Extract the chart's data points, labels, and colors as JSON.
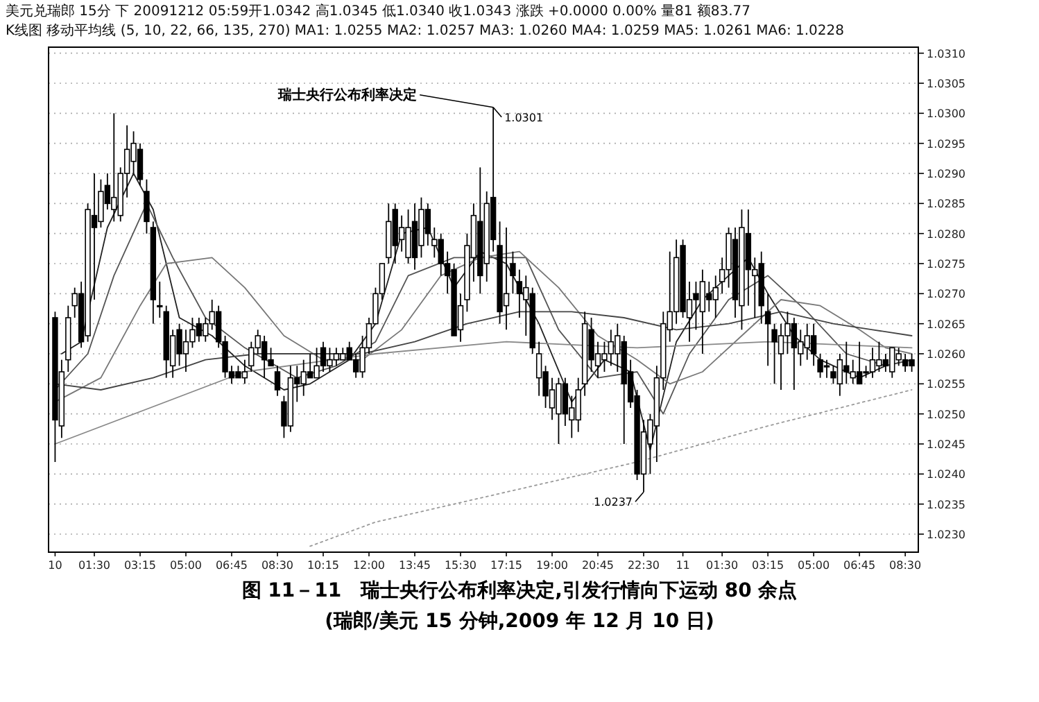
{
  "chart_data": {
    "type": "candlestick",
    "title": "图 11－11　瑞士央行公布利率决定,引发行情向下运动 80 余点",
    "subtitle": "(瑞郎/美元 15 分钟,2009 年 12 月 10 日)",
    "annotations": [
      "美元兑瑞郎 15分 下 20091212 05:59开1.0342 高1.0345 低1.0340 收1.0343 涨跌 +0.0000 0.00% 量81 额83.77",
      "K线图 移动平均线 (5, 10, 22, 66, 135, 270) MA1: 1.0255 MA2: 1.0257 MA3: 1.0260 MA4: 1.0259 MA5: 1.0261 MA6: 1.0228",
      {
        "text": "瑞士央行公布利率决定",
        "x": "2009-12-10T16:45",
        "y": 1.0301
      },
      {
        "text": "1.0301",
        "x": "2009-12-10T16:45",
        "y": 1.0301
      },
      {
        "text": "1.0237",
        "x": "2009-12-10T22:30",
        "y": 1.0237
      }
    ],
    "x": [
      "2009-12-10T00:00",
      "2009-12-10T00:15",
      "2009-12-10T00:30",
      "2009-12-10T00:45",
      "2009-12-10T01:00",
      "2009-12-10T01:15",
      "2009-12-10T01:30",
      "2009-12-10T01:45",
      "2009-12-10T02:00",
      "2009-12-10T02:15",
      "2009-12-10T02:30",
      "2009-12-10T02:45",
      "2009-12-10T03:00",
      "2009-12-10T03:15",
      "2009-12-10T03:30",
      "2009-12-10T03:45",
      "2009-12-10T04:00",
      "2009-12-10T04:15",
      "2009-12-10T04:30",
      "2009-12-10T04:45",
      "2009-12-10T05:00",
      "2009-12-10T05:15",
      "2009-12-10T05:30",
      "2009-12-10T05:45",
      "2009-12-10T06:00",
      "2009-12-10T06:15",
      "2009-12-10T06:30",
      "2009-12-10T06:45",
      "2009-12-10T07:00",
      "2009-12-10T07:15",
      "2009-12-10T07:30",
      "2009-12-10T07:45",
      "2009-12-10T08:00",
      "2009-12-10T08:15",
      "2009-12-10T08:30",
      "2009-12-10T08:45",
      "2009-12-10T09:00",
      "2009-12-10T09:15",
      "2009-12-10T09:30",
      "2009-12-10T09:45",
      "2009-12-10T10:00",
      "2009-12-10T10:15",
      "2009-12-10T10:30",
      "2009-12-10T10:45",
      "2009-12-10T11:00",
      "2009-12-10T11:15",
      "2009-12-10T11:30",
      "2009-12-10T11:45",
      "2009-12-10T12:00",
      "2009-12-10T12:15",
      "2009-12-10T12:30",
      "2009-12-10T12:45",
      "2009-12-10T13:00",
      "2009-12-10T13:15",
      "2009-12-10T13:30",
      "2009-12-10T13:45",
      "2009-12-10T14:00",
      "2009-12-10T14:15",
      "2009-12-10T14:30",
      "2009-12-10T14:45",
      "2009-12-10T15:00",
      "2009-12-10T15:15",
      "2009-12-10T15:30",
      "2009-12-10T15:45",
      "2009-12-10T16:00",
      "2009-12-10T16:15",
      "2009-12-10T16:30",
      "2009-12-10T16:45",
      "2009-12-10T17:00",
      "2009-12-10T17:15",
      "2009-12-10T17:30",
      "2009-12-10T17:45",
      "2009-12-10T18:00",
      "2009-12-10T18:15",
      "2009-12-10T18:30",
      "2009-12-10T18:45",
      "2009-12-10T19:00",
      "2009-12-10T19:15",
      "2009-12-10T19:30",
      "2009-12-10T19:45",
      "2009-12-10T20:00",
      "2009-12-10T20:15",
      "2009-12-10T20:30",
      "2009-12-10T20:45",
      "2009-12-10T21:00",
      "2009-12-10T21:15",
      "2009-12-10T21:30",
      "2009-12-10T21:45",
      "2009-12-10T22:00",
      "2009-12-10T22:15",
      "2009-12-10T22:30",
      "2009-12-10T22:45",
      "2009-12-10T23:00",
      "2009-12-10T23:15",
      "2009-12-10T23:30",
      "2009-12-10T23:45",
      "2009-12-11T00:00",
      "2009-12-11T00:15",
      "2009-12-11T00:30",
      "2009-12-11T00:45",
      "2009-12-11T01:00",
      "2009-12-11T01:15",
      "2009-12-11T01:30",
      "2009-12-11T01:45",
      "2009-12-11T02:00",
      "2009-12-11T02:15",
      "2009-12-11T02:30",
      "2009-12-11T02:45",
      "2009-12-11T03:00",
      "2009-12-11T03:15",
      "2009-12-11T03:30",
      "2009-12-11T03:45",
      "2009-12-11T04:00",
      "2009-12-11T04:15",
      "2009-12-11T04:30",
      "2009-12-11T04:45",
      "2009-12-11T05:00",
      "2009-12-11T05:15",
      "2009-12-11T05:30",
      "2009-12-11T05:45",
      "2009-12-11T06:00",
      "2009-12-11T06:15",
      "2009-12-11T06:30",
      "2009-12-11T06:45",
      "2009-12-11T07:00",
      "2009-12-11T07:15",
      "2009-12-11T07:30",
      "2009-12-11T07:45",
      "2009-12-11T08:00",
      "2009-12-11T08:15",
      "2009-12-11T08:30",
      "2009-12-11T08:45"
    ],
    "ohlc": [
      [
        1.0266,
        1.0267,
        1.0242,
        1.0249
      ],
      [
        1.0248,
        1.0259,
        1.0246,
        1.0257
      ],
      [
        1.0259,
        1.0268,
        1.0257,
        1.0266
      ],
      [
        1.0268,
        1.0271,
        1.0266,
        1.027
      ],
      [
        1.027,
        1.0272,
        1.0261,
        1.0262
      ],
      [
        1.0263,
        1.0285,
        1.0262,
        1.0284
      ],
      [
        1.0283,
        1.029,
        1.0269,
        1.0281
      ],
      [
        1.0282,
        1.0289,
        1.0281,
        1.0287
      ],
      [
        1.0288,
        1.029,
        1.0284,
        1.0285
      ],
      [
        1.0284,
        1.03,
        1.0282,
        1.0286
      ],
      [
        1.0283,
        1.0291,
        1.0282,
        1.029
      ],
      [
        1.029,
        1.0298,
        1.0286,
        1.0294
      ],
      [
        1.0292,
        1.0297,
        1.029,
        1.0295
      ],
      [
        1.0294,
        1.0295,
        1.0288,
        1.0289
      ],
      [
        1.0287,
        1.0289,
        1.028,
        1.0282
      ],
      [
        1.0281,
        1.0282,
        1.0265,
        1.0269
      ],
      [
        1.0268,
        1.0272,
        1.0266,
        1.0268
      ],
      [
        1.0267,
        1.0268,
        1.0256,
        1.0259
      ],
      [
        1.0258,
        1.0264,
        1.0256,
        1.0263
      ],
      [
        1.0264,
        1.0265,
        1.0258,
        1.026
      ],
      [
        1.026,
        1.0264,
        1.0257,
        1.0262
      ],
      [
        1.0262,
        1.0266,
        1.0261,
        1.0264
      ],
      [
        1.0265,
        1.0266,
        1.0262,
        1.0263
      ],
      [
        1.0263,
        1.0266,
        1.0262,
        1.0265
      ],
      [
        1.0265,
        1.0269,
        1.0264,
        1.0267
      ],
      [
        1.0267,
        1.0268,
        1.0261,
        1.0262
      ],
      [
        1.0262,
        1.0263,
        1.0256,
        1.0257
      ],
      [
        1.0257,
        1.0258,
        1.0255,
        1.0256
      ],
      [
        1.0257,
        1.0258,
        1.0256,
        1.0256
      ],
      [
        1.0256,
        1.0259,
        1.0255,
        1.0257
      ],
      [
        1.0258,
        1.0262,
        1.0257,
        1.0261
      ],
      [
        1.0261,
        1.0264,
        1.026,
        1.0263
      ],
      [
        1.0262,
        1.0263,
        1.0256,
        1.0259
      ],
      [
        1.0259,
        1.0261,
        1.0258,
        1.0258
      ],
      [
        1.0257,
        1.0258,
        1.0253,
        1.0254
      ],
      [
        1.0252,
        1.0253,
        1.0246,
        1.0248
      ],
      [
        1.0248,
        1.0258,
        1.0247,
        1.0256
      ],
      [
        1.0256,
        1.0258,
        1.0252,
        1.0255
      ],
      [
        1.0255,
        1.0259,
        1.0253,
        1.0257
      ],
      [
        1.0257,
        1.026,
        1.0256,
        1.0256
      ],
      [
        1.0256,
        1.0261,
        1.0256,
        1.0258
      ],
      [
        1.0261,
        1.0262,
        1.0257,
        1.0258
      ],
      [
        1.0258,
        1.0261,
        1.0257,
        1.0259
      ],
      [
        1.0259,
        1.0261,
        1.0258,
        1.026
      ],
      [
        1.0259,
        1.0261,
        1.0259,
        1.026
      ],
      [
        1.0261,
        1.0262,
        1.0259,
        1.0259
      ],
      [
        1.0259,
        1.026,
        1.0256,
        1.0257
      ],
      [
        1.0257,
        1.0263,
        1.0256,
        1.0261
      ],
      [
        1.0261,
        1.0266,
        1.026,
        1.0265
      ],
      [
        1.0265,
        1.0271,
        1.0265,
        1.027
      ],
      [
        1.027,
        1.0275,
        1.0269,
        1.0275
      ],
      [
        1.0276,
        1.0285,
        1.0275,
        1.0282
      ],
      [
        1.0284,
        1.0285,
        1.0275,
        1.0278
      ],
      [
        1.0279,
        1.0283,
        1.0277,
        1.0281
      ],
      [
        1.0276,
        1.0284,
        1.0275,
        1.0281
      ],
      [
        1.0282,
        1.0285,
        1.0274,
        1.0276
      ],
      [
        1.0278,
        1.0286,
        1.0276,
        1.0284
      ],
      [
        1.0284,
        1.0285,
        1.0278,
        1.028
      ],
      [
        1.0278,
        1.0281,
        1.0276,
        1.0279
      ],
      [
        1.0279,
        1.028,
        1.0273,
        1.0275
      ],
      [
        1.0275,
        1.0277,
        1.027,
        1.0273
      ],
      [
        1.0274,
        1.0275,
        1.0263,
        1.0263
      ],
      [
        1.0264,
        1.027,
        1.0262,
        1.0268
      ],
      [
        1.0269,
        1.028,
        1.0267,
        1.0278
      ],
      [
        1.0276,
        1.0285,
        1.0272,
        1.0283
      ],
      [
        1.0282,
        1.0291,
        1.027,
        1.0273
      ],
      [
        1.0275,
        1.0287,
        1.0272,
        1.0285
      ],
      [
        1.0286,
        1.0301,
        1.0277,
        1.0279
      ],
      [
        1.0278,
        1.0282,
        1.0265,
        1.0267
      ],
      [
        1.0268,
        1.0281,
        1.0264,
        1.027
      ],
      [
        1.0275,
        1.0277,
        1.027,
        1.0273
      ],
      [
        1.0272,
        1.0274,
        1.0266,
        1.027
      ],
      [
        1.0269,
        1.0273,
        1.0263,
        1.0271
      ],
      [
        1.027,
        1.0271,
        1.026,
        1.0261
      ],
      [
        1.0256,
        1.0262,
        1.0253,
        1.026
      ],
      [
        1.0257,
        1.0258,
        1.0251,
        1.0253
      ],
      [
        1.0251,
        1.0256,
        1.0249,
        1.0254
      ],
      [
        1.025,
        1.0256,
        1.0245,
        1.0255
      ],
      [
        1.0255,
        1.0256,
        1.0248,
        1.025
      ],
      [
        1.0249,
        1.0253,
        1.0246,
        1.0251
      ],
      [
        1.0249,
        1.0256,
        1.0247,
        1.0254
      ],
      [
        1.0255,
        1.0267,
        1.0253,
        1.0265
      ],
      [
        1.0264,
        1.0266,
        1.0257,
        1.0259
      ],
      [
        1.0258,
        1.0262,
        1.0256,
        1.026
      ],
      [
        1.0259,
        1.0262,
        1.0257,
        1.026
      ],
      [
        1.026,
        1.0264,
        1.0258,
        1.0262
      ],
      [
        1.026,
        1.0265,
        1.0257,
        1.0263
      ],
      [
        1.0262,
        1.0263,
        1.0245,
        1.0255
      ],
      [
        1.0257,
        1.0259,
        1.0251,
        1.0252
      ],
      [
        1.0253,
        1.0254,
        1.0239,
        1.024
      ],
      [
        1.024,
        1.0249,
        1.0237,
        1.0247
      ],
      [
        1.0245,
        1.025,
        1.024,
        1.0249
      ],
      [
        1.0248,
        1.0258,
        1.0242,
        1.0256
      ],
      [
        1.0256,
        1.0267,
        1.0254,
        1.0265
      ],
      [
        1.0264,
        1.0277,
        1.0262,
        1.0267
      ],
      [
        1.0267,
        1.0279,
        1.0265,
        1.0276
      ],
      [
        1.0278,
        1.0279,
        1.0266,
        1.0267
      ],
      [
        1.0266,
        1.0272,
        1.0262,
        1.0269
      ],
      [
        1.027,
        1.0272,
        1.0264,
        1.0269
      ],
      [
        1.0267,
        1.0274,
        1.026,
        1.0272
      ],
      [
        1.027,
        1.0272,
        1.0267,
        1.0269
      ],
      [
        1.0269,
        1.0273,
        1.0266,
        1.0271
      ],
      [
        1.0272,
        1.0276,
        1.027,
        1.0274
      ],
      [
        1.0274,
        1.0281,
        1.0271,
        1.028
      ],
      [
        1.0279,
        1.0281,
        1.0266,
        1.0269
      ],
      [
        1.0268,
        1.0284,
        1.0264,
        1.0281
      ],
      [
        1.028,
        1.0284,
        1.0268,
        1.0274
      ],
      [
        1.0273,
        1.0276,
        1.0266,
        1.0274
      ],
      [
        1.0275,
        1.0277,
        1.0265,
        1.0268
      ],
      [
        1.0267,
        1.027,
        1.0258,
        1.0265
      ],
      [
        1.0264,
        1.0265,
        1.0255,
        1.0262
      ],
      [
        1.026,
        1.0265,
        1.0254,
        1.0263
      ],
      [
        1.0263,
        1.0267,
        1.026,
        1.0265
      ],
      [
        1.0265,
        1.0266,
        1.0254,
        1.0261
      ],
      [
        1.026,
        1.0264,
        1.0258,
        1.0262
      ],
      [
        1.0261,
        1.0265,
        1.0259,
        1.0263
      ],
      [
        1.0263,
        1.0265,
        1.0258,
        1.026
      ],
      [
        1.0259,
        1.026,
        1.0256,
        1.0257
      ],
      [
        1.0258,
        1.0259,
        1.0256,
        1.0258
      ],
      [
        1.0257,
        1.0258,
        1.0255,
        1.0256
      ],
      [
        1.0255,
        1.026,
        1.0253,
        1.0259
      ],
      [
        1.0258,
        1.0262,
        1.0255,
        1.0257
      ],
      [
        1.0256,
        1.0259,
        1.0255,
        1.0257
      ],
      [
        1.0257,
        1.0262,
        1.0255,
        1.0255
      ],
      [
        1.0257,
        1.0258,
        1.0256,
        1.0257
      ],
      [
        1.0257,
        1.0261,
        1.0256,
        1.0259
      ],
      [
        1.0258,
        1.0262,
        1.0257,
        1.0259
      ],
      [
        1.0259,
        1.026,
        1.0257,
        1.0258
      ],
      [
        1.0257,
        1.0261,
        1.0256,
        1.0261
      ],
      [
        1.0259,
        1.0261,
        1.0258,
        1.026
      ],
      [
        1.0259,
        1.026,
        1.0257,
        1.0258
      ],
      [
        1.0259,
        1.026,
        1.0257,
        1.0258
      ]
    ],
    "color": "#000000",
    "series": [
      {
        "type": "line",
        "color": "#222222",
        "x": [
          "2009-12-10T00:15",
          "2009-12-10T01:00",
          "2009-12-10T02:00",
          "2009-12-10T03:00",
          "2009-12-10T03:45",
          "2009-12-10T04:45",
          "2009-12-10T06:00",
          "2009-12-10T07:15",
          "2009-12-10T08:45",
          "2009-12-10T09:45",
          "2009-12-10T11:15",
          "2009-12-10T12:15",
          "2009-12-10T13:15",
          "2009-12-10T14:15",
          "2009-12-10T15:15",
          "2009-12-10T16:15",
          "2009-12-10T17:15",
          "2009-12-10T18:30",
          "2009-12-10T19:45",
          "2009-12-10T21:00",
          "2009-12-10T22:00",
          "2009-12-10T22:45",
          "2009-12-10T23:45",
          "2009-12-11T00:45",
          "2009-12-11T01:45",
          "2009-12-11T02:30",
          "2009-12-11T03:15",
          "2009-12-11T04:15",
          "2009-12-11T05:15",
          "2009-12-11T06:45",
          "2009-12-11T07:45",
          "2009-12-11T08:45"
        ],
        "values": [
          1.026,
          1.0262,
          1.0281,
          1.029,
          1.0284,
          1.0266,
          1.0263,
          1.0258,
          1.0254,
          1.0255,
          1.0259,
          1.0265,
          1.028,
          1.0281,
          1.0271,
          1.0277,
          1.0275,
          1.0265,
          1.0252,
          1.0259,
          1.0257,
          1.0244,
          1.0262,
          1.0269,
          1.0273,
          1.0276,
          1.027,
          1.0263,
          1.0259,
          1.0256,
          1.0258,
          1.0259
        ]
      },
      {
        "type": "line",
        "color": "#555555",
        "x": [
          "2009-12-10T00:00",
          "2009-12-10T01:15",
          "2009-12-10T02:15",
          "2009-12-10T03:30",
          "2009-12-10T04:30",
          "2009-12-10T05:45",
          "2009-12-10T07:15",
          "2009-12-10T09:15",
          "2009-12-10T10:45",
          "2009-12-10T12:15",
          "2009-12-10T13:30",
          "2009-12-10T15:15",
          "2009-12-10T16:45",
          "2009-12-10T18:00",
          "2009-12-10T19:15",
          "2009-12-10T20:45",
          "2009-12-10T22:15",
          "2009-12-10T23:15",
          "2009-12-11T00:15",
          "2009-12-11T01:45",
          "2009-12-11T03:15",
          "2009-12-11T04:45",
          "2009-12-11T06:15",
          "2009-12-11T07:45",
          "2009-12-11T08:45"
        ],
        "values": [
          1.0254,
          1.026,
          1.0273,
          1.0285,
          1.0276,
          1.0266,
          1.0261,
          1.0256,
          1.0258,
          1.0262,
          1.0273,
          1.0276,
          1.0276,
          1.0276,
          1.0264,
          1.0256,
          1.0257,
          1.025,
          1.026,
          1.0269,
          1.0273,
          1.0267,
          1.026,
          1.0258,
          1.0259
        ]
      },
      {
        "type": "line",
        "color": "#777777",
        "x": [
          "2009-12-10T00:00",
          "2009-12-10T01:45",
          "2009-12-10T03:15",
          "2009-12-10T04:15",
          "2009-12-10T06:00",
          "2009-12-10T07:15",
          "2009-12-10T08:45",
          "2009-12-10T10:15",
          "2009-12-10T11:45",
          "2009-12-10T13:15",
          "2009-12-10T14:45",
          "2009-12-10T16:15",
          "2009-12-10T17:45",
          "2009-12-10T19:15",
          "2009-12-10T20:45",
          "2009-12-10T22:15",
          "2009-12-10T23:30",
          "2009-12-11T00:45",
          "2009-12-11T02:15",
          "2009-12-11T03:45",
          "2009-12-11T05:15",
          "2009-12-11T06:45",
          "2009-12-11T07:45",
          "2009-12-11T08:45"
        ],
        "values": [
          1.0252,
          1.0256,
          1.0268,
          1.0275,
          1.0276,
          1.0271,
          1.0263,
          1.0259,
          1.0259,
          1.0264,
          1.0273,
          1.0276,
          1.0277,
          1.0271,
          1.0263,
          1.0259,
          1.0255,
          1.0257,
          1.0263,
          1.0269,
          1.0268,
          1.0264,
          1.0261,
          1.026
        ]
      },
      {
        "type": "line",
        "color": "#444444",
        "x": [
          "2009-12-10T00:00",
          "2009-12-10T01:45",
          "2009-12-10T03:45",
          "2009-12-10T05:45",
          "2009-12-10T07:45",
          "2009-12-10T09:45",
          "2009-12-10T11:45",
          "2009-12-10T13:45",
          "2009-12-10T15:45",
          "2009-12-10T17:45",
          "2009-12-10T19:45",
          "2009-12-10T21:45",
          "2009-12-10T23:45",
          "2009-12-11T01:45",
          "2009-12-11T03:45",
          "2009-12-11T05:45",
          "2009-12-11T07:15",
          "2009-12-11T08:45"
        ],
        "values": [
          1.0255,
          1.0254,
          1.0256,
          1.0259,
          1.026,
          1.026,
          1.026,
          1.0262,
          1.0265,
          1.0267,
          1.0267,
          1.0266,
          1.0264,
          1.0265,
          1.0267,
          1.0265,
          1.0264,
          1.0263
        ]
      },
      {
        "type": "line",
        "color": "#888888",
        "x": [
          "2009-12-10T00:00",
          "2009-12-10T07:15",
          "2009-12-10T12:15",
          "2009-12-10T17:15",
          "2009-12-10T22:15",
          "2009-12-11T03:15",
          "2009-12-11T08:45"
        ],
        "values": [
          1.0245,
          1.0257,
          1.026,
          1.0262,
          1.0261,
          1.0262,
          1.0261
        ]
      },
      {
        "type": "line",
        "color": "#999999",
        "line_style": "dotted",
        "x": [
          "2009-12-10T09:45",
          "2009-12-10T12:15",
          "2009-12-10T17:15",
          "2009-12-10T22:15",
          "2009-12-11T03:15",
          "2009-12-11T08:45"
        ],
        "values": [
          1.0228,
          1.0232,
          1.0237,
          1.0242,
          1.0248,
          1.0254
        ]
      }
    ],
    "xlim": [
      "2009-12-09T23:45",
      "2009-12-11T09:00"
    ],
    "xticks": [
      {
        "value": "2009-12-10T00:00",
        "label": "10"
      },
      {
        "value": "2009-12-10T01:30",
        "label": "01:30"
      },
      {
        "value": "2009-12-10T03:15",
        "label": "03:15"
      },
      {
        "value": "2009-12-10T05:00",
        "label": "05:00"
      },
      {
        "value": "2009-12-10T06:45",
        "label": "06:45"
      },
      {
        "value": "2009-12-10T08:30",
        "label": "08:30"
      },
      {
        "value": "2009-12-10T10:15",
        "label": "10:15"
      },
      {
        "value": "2009-12-10T12:00",
        "label": "12:00"
      },
      {
        "value": "2009-12-10T13:45",
        "label": "13:45"
      },
      {
        "value": "2009-12-10T15:30",
        "label": "15:30"
      },
      {
        "value": "2009-12-10T17:15",
        "label": "17:15"
      },
      {
        "value": "2009-12-10T19:00",
        "label": "19:00"
      },
      {
        "value": "2009-12-10T20:45",
        "label": "20:45"
      },
      {
        "value": "2009-12-10T22:30",
        "label": "22:30"
      },
      {
        "value": "2009-12-11T00:00",
        "label": "11"
      },
      {
        "value": "2009-12-11T01:30",
        "label": "01:30"
      },
      {
        "value": "2009-12-11T03:15",
        "label": "03:15"
      },
      {
        "value": "2009-12-11T05:00",
        "label": "05:00"
      },
      {
        "value": "2009-12-11T06:45",
        "label": "06:45"
      },
      {
        "value": "2009-12-11T08:30",
        "label": "08:30"
      }
    ],
    "ylim": [
      1.0227,
      1.0311
    ],
    "yticks": [
      {
        "value": 1.023,
        "label": "1.0230"
      },
      {
        "value": 1.0235,
        "label": "1.0235"
      },
      {
        "value": 1.024,
        "label": "1.0240"
      },
      {
        "value": 1.0245,
        "label": "1.0245"
      },
      {
        "value": 1.025,
        "label": "1.0250"
      },
      {
        "value": 1.0255,
        "label": "1.0255"
      },
      {
        "value": 1.026,
        "label": "1.0260"
      },
      {
        "value": 1.0265,
        "label": "1.0265"
      },
      {
        "value": 1.027,
        "label": "1.0270"
      },
      {
        "value": 1.0275,
        "label": "1.0275"
      },
      {
        "value": 1.028,
        "label": "1.0280"
      },
      {
        "value": 1.0285,
        "label": "1.0285"
      },
      {
        "value": 1.029,
        "label": "1.0290"
      },
      {
        "value": 1.0295,
        "label": "1.0295"
      },
      {
        "value": 1.03,
        "label": "1.0300"
      },
      {
        "value": 1.0305,
        "label": "1.0305"
      },
      {
        "value": 1.031,
        "label": "1.0310"
      }
    ],
    "grid": "y"
  }
}
